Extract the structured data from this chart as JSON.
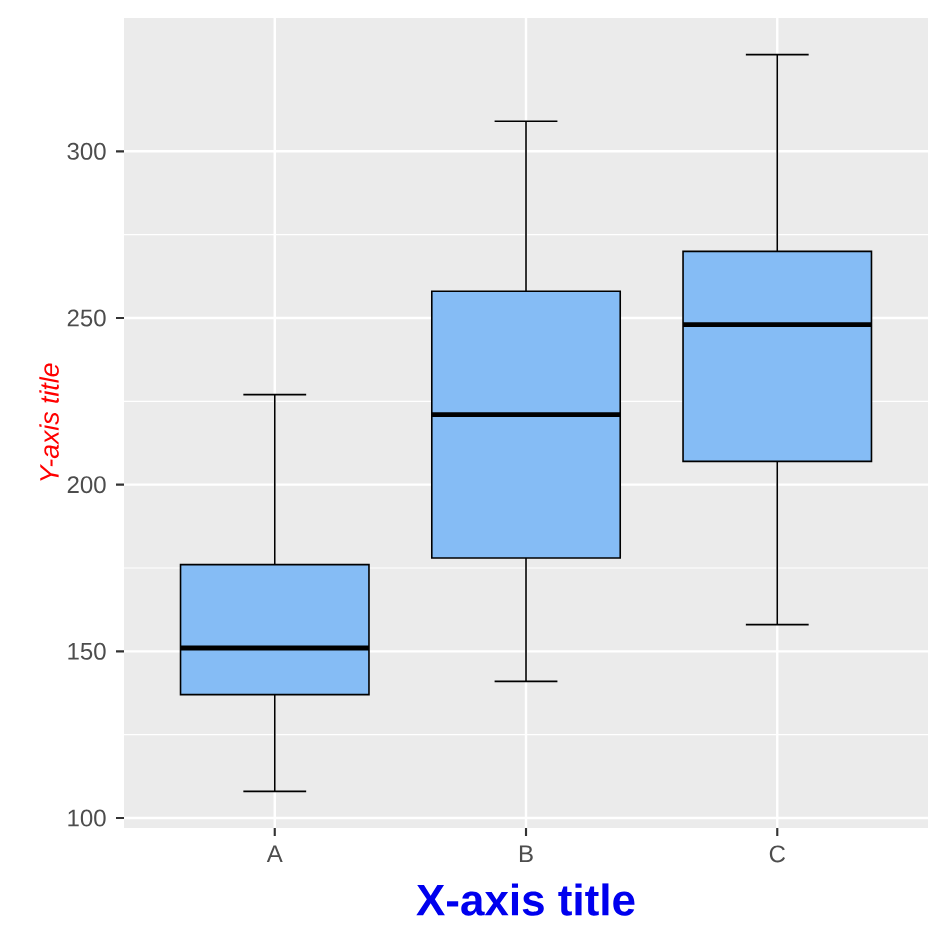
{
  "chart_data": {
    "type": "box",
    "xlabel": "X-axis title",
    "ylabel": "Y-axis title",
    "categories": [
      "A",
      "B",
      "C"
    ],
    "boxes": [
      {
        "low": 108,
        "q1": 137,
        "median": 151,
        "q3": 176,
        "high": 227
      },
      {
        "low": 141,
        "q1": 178,
        "median": 221,
        "q3": 258,
        "high": 309
      },
      {
        "low": 158,
        "q1": 207,
        "median": 248,
        "q3": 270,
        "high": 329
      }
    ],
    "color": "#85bcf5",
    "ylim": [
      97,
      340
    ],
    "yticks": [
      100,
      150,
      200,
      250,
      300
    ],
    "grid": true
  }
}
